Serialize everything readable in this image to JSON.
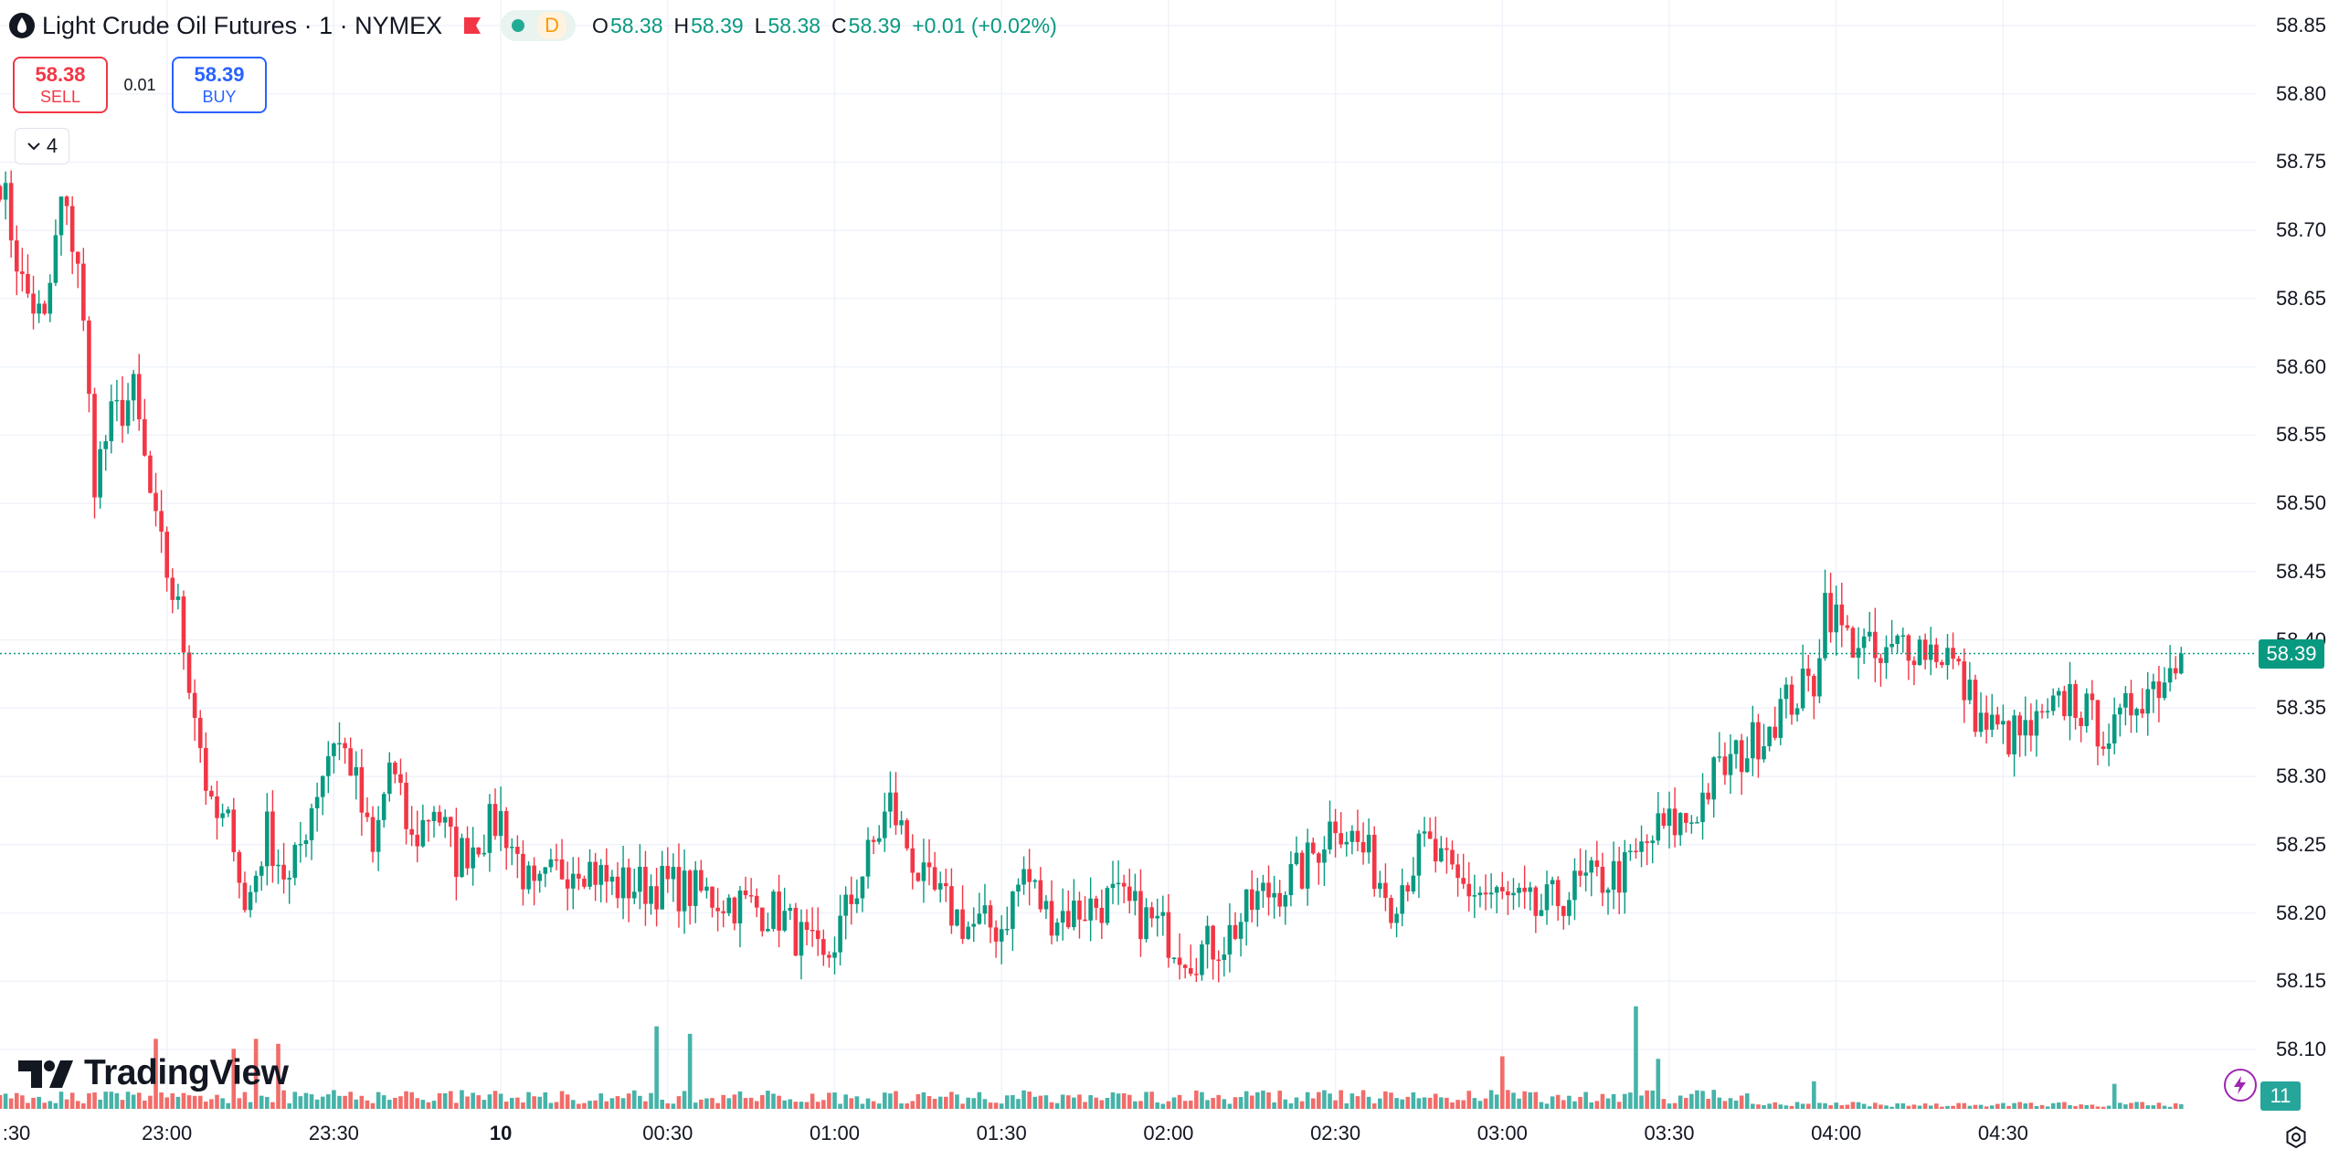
{
  "symbol": {
    "title": "Light Crude Oil Futures · 1 · NYMEX",
    "logo_icon": "oil-drop-icon",
    "flag_icon": "flag-icon",
    "market_status": "open",
    "delay_badge": "D"
  },
  "ohlc": {
    "open_label": "O",
    "open": "58.38",
    "high_label": "H",
    "high": "58.39",
    "low_label": "L",
    "low": "58.38",
    "close_label": "C",
    "close": "58.39",
    "change": "+0.01 (+0.02%)"
  },
  "trade": {
    "sell_price": "58.38",
    "sell_label": "SELL",
    "spread": "0.01",
    "buy_price": "58.39",
    "buy_label": "BUY"
  },
  "indicators": {
    "count": "4"
  },
  "watermark": "TradingView",
  "price_axis": {
    "labels": [
      "58.85",
      "58.80",
      "58.75",
      "58.70",
      "58.65",
      "58.60",
      "58.55",
      "58.50",
      "58.45",
      "58.40",
      "58.35",
      "58.30",
      "58.25",
      "58.20",
      "58.15",
      "58.10"
    ],
    "last_price": "58.39"
  },
  "time_axis": {
    "labels": [
      {
        "text": ":30",
        "bold": false
      },
      {
        "text": "23:00",
        "bold": false
      },
      {
        "text": "23:30",
        "bold": false
      },
      {
        "text": "10",
        "bold": true
      },
      {
        "text": "00:30",
        "bold": false
      },
      {
        "text": "01:00",
        "bold": false
      },
      {
        "text": "01:30",
        "bold": false
      },
      {
        "text": "02:00",
        "bold": false
      },
      {
        "text": "02:30",
        "bold": false
      },
      {
        "text": "03:00",
        "bold": false
      },
      {
        "text": "03:30",
        "bold": false
      },
      {
        "text": "04:00",
        "bold": false
      },
      {
        "text": "04:30",
        "bold": false
      }
    ]
  },
  "volume": {
    "last": "11"
  },
  "colors": {
    "up": "#089981",
    "down": "#f23645",
    "volume_up": "#26a69a",
    "volume_down": "#ef5350",
    "grid": "#f0f3fa",
    "accent": "#2962ff"
  },
  "chart_data": {
    "type": "candlestick",
    "interval": "1 minute",
    "series_name": "Light Crude Oil Futures",
    "ylim": [
      58.08,
      58.87
    ],
    "grid": true,
    "keyframes": [
      {
        "time": "22:30",
        "price": 58.74
      },
      {
        "time": "22:34",
        "price": 58.66
      },
      {
        "time": "22:38",
        "price": 58.63
      },
      {
        "time": "22:41",
        "price": 58.72
      },
      {
        "time": "22:44",
        "price": 58.68
      },
      {
        "time": "22:47",
        "price": 58.52
      },
      {
        "time": "22:50",
        "price": 58.56
      },
      {
        "time": "22:54",
        "price": 58.58
      },
      {
        "time": "22:58",
        "price": 58.48
      },
      {
        "time": "23:02",
        "price": 58.42
      },
      {
        "time": "23:05",
        "price": 58.35
      },
      {
        "time": "23:08",
        "price": 58.27
      },
      {
        "time": "23:12",
        "price": 58.26
      },
      {
        "time": "23:14",
        "price": 58.2
      },
      {
        "time": "23:18",
        "price": 58.26
      },
      {
        "time": "23:22",
        "price": 58.22
      },
      {
        "time": "23:26",
        "price": 58.28
      },
      {
        "time": "23:30",
        "price": 58.33
      },
      {
        "time": "23:33",
        "price": 58.31
      },
      {
        "time": "23:37",
        "price": 58.24
      },
      {
        "time": "23:40",
        "price": 58.31
      },
      {
        "time": "23:44",
        "price": 58.25
      },
      {
        "time": "23:48",
        "price": 58.28
      },
      {
        "time": "23:52",
        "price": 58.24
      },
      {
        "time": "00:00",
        "price": 58.27
      },
      {
        "time": "00:06",
        "price": 58.21
      },
      {
        "time": "00:10",
        "price": 58.23
      },
      {
        "time": "00:14",
        "price": 58.24
      },
      {
        "time": "00:20",
        "price": 58.22
      },
      {
        "time": "00:30",
        "price": 58.22
      },
      {
        "time": "00:40",
        "price": 58.21
      },
      {
        "time": "00:50",
        "price": 58.2
      },
      {
        "time": "00:58",
        "price": 58.16
      },
      {
        "time": "01:04",
        "price": 58.22
      },
      {
        "time": "01:10",
        "price": 58.28
      },
      {
        "time": "01:16",
        "price": 58.22
      },
      {
        "time": "01:24",
        "price": 58.19
      },
      {
        "time": "01:30",
        "price": 58.19
      },
      {
        "time": "01:34",
        "price": 58.23
      },
      {
        "time": "01:38",
        "price": 58.2
      },
      {
        "time": "01:42",
        "price": 58.2
      },
      {
        "time": "01:50",
        "price": 58.21
      },
      {
        "time": "01:58",
        "price": 58.19
      },
      {
        "time": "02:04",
        "price": 58.17
      },
      {
        "time": "02:10",
        "price": 58.18
      },
      {
        "time": "02:16",
        "price": 58.21
      },
      {
        "time": "02:20",
        "price": 58.22
      },
      {
        "time": "02:24",
        "price": 58.23
      },
      {
        "time": "02:30",
        "price": 58.27
      },
      {
        "time": "02:36",
        "price": 58.24
      },
      {
        "time": "02:40",
        "price": 58.21
      },
      {
        "time": "02:46",
        "price": 58.25
      },
      {
        "time": "02:52",
        "price": 58.22
      },
      {
        "time": "03:00",
        "price": 58.21
      },
      {
        "time": "03:06",
        "price": 58.2
      },
      {
        "time": "03:14",
        "price": 58.22
      },
      {
        "time": "03:22",
        "price": 58.23
      },
      {
        "time": "03:28",
        "price": 58.26
      },
      {
        "time": "03:34",
        "price": 58.27
      },
      {
        "time": "03:38",
        "price": 58.3
      },
      {
        "time": "03:44",
        "price": 58.32
      },
      {
        "time": "03:50",
        "price": 58.35
      },
      {
        "time": "03:56",
        "price": 58.37
      },
      {
        "time": "03:58",
        "price": 58.43
      },
      {
        "time": "04:02",
        "price": 58.4
      },
      {
        "time": "04:04",
        "price": 58.4
      },
      {
        "time": "04:08",
        "price": 58.38
      },
      {
        "time": "04:12",
        "price": 58.4
      },
      {
        "time": "04:20",
        "price": 58.39
      },
      {
        "time": "04:26",
        "price": 58.34
      },
      {
        "time": "04:30",
        "price": 58.33
      },
      {
        "time": "04:34",
        "price": 58.33
      },
      {
        "time": "04:38",
        "price": 58.34
      },
      {
        "time": "04:42",
        "price": 58.36
      },
      {
        "time": "04:46",
        "price": 58.34
      },
      {
        "time": "04:50",
        "price": 58.33
      },
      {
        "time": "04:54",
        "price": 58.36
      },
      {
        "time": "04:58",
        "price": 58.37
      },
      {
        "time": "05:02",
        "price": 58.39
      }
    ],
    "volume_spikes": [
      {
        "time": "22:58",
        "value": 140,
        "direction": "down"
      },
      {
        "time": "23:12",
        "value": 120,
        "direction": "down"
      },
      {
        "time": "23:16",
        "value": 140,
        "direction": "down"
      },
      {
        "time": "23:20",
        "value": 130,
        "direction": "down"
      },
      {
        "time": "00:28",
        "value": 165,
        "direction": "up"
      },
      {
        "time": "00:34",
        "value": 150,
        "direction": "up"
      },
      {
        "time": "03:00",
        "value": 105,
        "direction": "down"
      },
      {
        "time": "03:24",
        "value": 205,
        "direction": "up"
      },
      {
        "time": "03:28",
        "value": 100,
        "direction": "up"
      },
      {
        "time": "03:56",
        "value": 55,
        "direction": "up"
      },
      {
        "time": "04:50",
        "value": 50,
        "direction": "up"
      }
    ],
    "volume_max": 210
  }
}
